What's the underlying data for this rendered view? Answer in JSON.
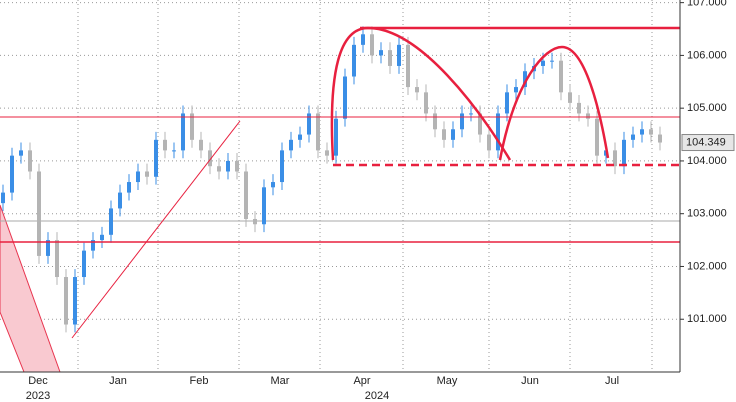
{
  "chart_data": {
    "type": "candlestick",
    "x_labels": [
      "Dec",
      "Jan",
      "Feb",
      "Mar",
      "Apr",
      "May",
      "Jun",
      "Jul"
    ],
    "year_labels": [
      "2023",
      "2024"
    ],
    "up_color": "#3a8ee6",
    "down_color": "#b4b4b4",
    "ylim": [
      100,
      107.05
    ],
    "yticks": [
      {
        "value": 101,
        "label": "101.000"
      },
      {
        "value": 102,
        "label": "102.000"
      },
      {
        "value": 103,
        "label": "103.000"
      },
      {
        "value": 104,
        "label": "104.000"
      },
      {
        "value": 105,
        "label": "105.000"
      },
      {
        "value": 106,
        "label": "106.000"
      },
      {
        "value": 107,
        "label": "107.000"
      }
    ],
    "grid": true,
    "open": [
      103.2,
      103.4,
      104.1,
      104.2,
      103.8,
      102.2,
      102.5,
      101.8,
      100.9,
      101.8,
      102.3,
      102.5,
      102.6,
      103.1,
      103.4,
      103.6,
      103.8,
      103.7,
      104.4,
      104.2,
      104.2,
      104.9,
      104.4,
      104.2,
      103.9,
      103.8,
      104.0,
      103.8,
      102.9,
      102.8,
      103.5,
      103.6,
      104.2,
      104.4,
      104.5,
      104.9,
      104.2,
      104.1,
      104.8,
      105.6,
      106.2,
      106.4,
      106.0,
      106.1,
      105.8,
      106.2,
      105.4,
      105.3,
      104.9,
      104.6,
      104.4,
      104.6,
      104.9,
      104.9,
      104.5,
      104.2,
      104.9,
      105.3,
      105.4,
      105.7,
      105.8,
      105.9,
      105.9,
      105.3,
      105.1,
      104.9,
      104.8,
      104.1,
      104.2,
      103.9,
      104.4,
      104.5,
      104.6,
      104.5
    ],
    "high": [
      103.55,
      104.25,
      104.35,
      104.35,
      103.95,
      102.65,
      102.65,
      101.95,
      101.95,
      102.45,
      102.65,
      102.75,
      103.25,
      103.55,
      103.75,
      103.95,
      103.95,
      104.55,
      104.55,
      104.35,
      105.05,
      105.05,
      104.55,
      104.35,
      104.05,
      104.15,
      104.15,
      103.95,
      103.05,
      103.65,
      103.75,
      104.35,
      104.55,
      104.65,
      105.05,
      105.05,
      104.35,
      104.95,
      105.75,
      106.35,
      106.55,
      106.55,
      106.25,
      106.25,
      106.35,
      106.35,
      105.55,
      105.45,
      105.05,
      104.75,
      104.75,
      105.05,
      105.05,
      105.05,
      104.65,
      105.05,
      105.45,
      105.55,
      105.85,
      105.95,
      106.05,
      106.05,
      106.05,
      105.45,
      105.25,
      105.05,
      104.95,
      104.35,
      104.35,
      104.55,
      104.65,
      104.75,
      104.75,
      104.65
    ],
    "low": [
      103.05,
      103.25,
      103.95,
      103.65,
      102.05,
      102.05,
      101.65,
      100.75,
      100.75,
      101.65,
      102.15,
      102.35,
      102.45,
      102.95,
      103.25,
      103.45,
      103.55,
      103.55,
      104.05,
      104.05,
      104.05,
      104.25,
      104.05,
      103.75,
      103.65,
      103.65,
      103.65,
      102.75,
      102.65,
      102.65,
      103.35,
      103.45,
      104.05,
      104.25,
      104.35,
      104.05,
      103.95,
      103.95,
      104.65,
      105.45,
      106.05,
      105.85,
      105.85,
      105.65,
      105.65,
      105.25,
      105.15,
      104.75,
      104.45,
      104.25,
      104.25,
      104.45,
      104.75,
      104.35,
      104.05,
      104.05,
      104.75,
      105.15,
      105.25,
      105.55,
      105.65,
      105.75,
      105.15,
      104.95,
      104.75,
      104.65,
      103.95,
      103.95,
      103.75,
      103.75,
      104.25,
      104.35,
      104.35,
      104.2
    ],
    "close": [
      103.4,
      104.1,
      104.2,
      103.8,
      102.2,
      102.5,
      101.8,
      100.9,
      101.8,
      102.3,
      102.5,
      102.6,
      103.1,
      103.4,
      103.6,
      103.8,
      103.7,
      104.4,
      104.2,
      104.2,
      104.9,
      104.4,
      104.2,
      103.9,
      103.8,
      104.0,
      103.8,
      102.9,
      102.8,
      103.5,
      103.6,
      104.2,
      104.4,
      104.5,
      104.9,
      104.2,
      104.1,
      104.8,
      105.6,
      106.2,
      106.4,
      106.0,
      106.1,
      105.8,
      106.2,
      105.4,
      105.3,
      104.9,
      104.6,
      104.4,
      104.6,
      104.9,
      104.9,
      104.5,
      104.2,
      104.9,
      105.3,
      105.4,
      105.7,
      105.8,
      105.9,
      105.9,
      105.3,
      105.1,
      104.9,
      104.8,
      104.1,
      104.2,
      103.9,
      104.4,
      104.5,
      104.6,
      104.5,
      104.349
    ]
  }
}
